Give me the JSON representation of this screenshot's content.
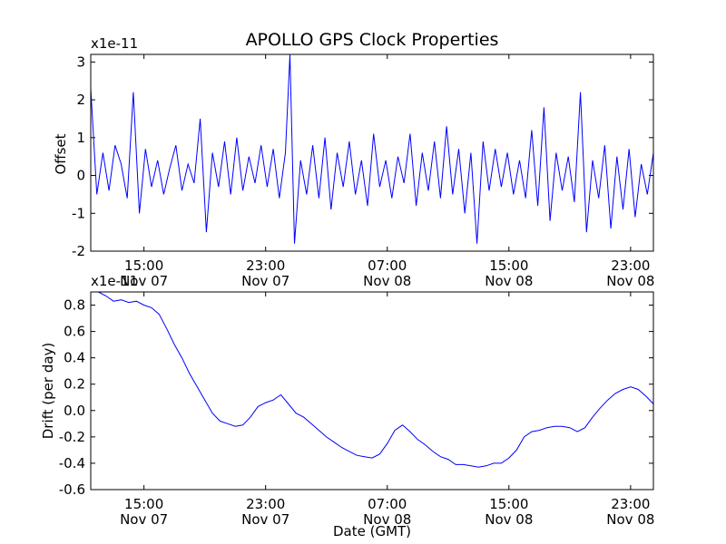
{
  "chart_data": [
    {
      "type": "line",
      "title": "APOLLO GPS Clock Properties",
      "ylabel": "Offset",
      "xlabel": "",
      "scale_label": "x1e-11",
      "ylim": [
        -2,
        3.2
      ],
      "xlim_hours": [
        11.5,
        48.5
      ],
      "yticks": [
        -2,
        -1,
        0,
        1,
        2,
        3
      ],
      "xticks": [
        {
          "hour": 15,
          "time": "15:00",
          "date": "Nov 07"
        },
        {
          "hour": 23,
          "time": "23:00",
          "date": "Nov 07"
        },
        {
          "hour": 31,
          "time": "07:00",
          "date": "Nov 08"
        },
        {
          "hour": 39,
          "time": "15:00",
          "date": "Nov 08"
        },
        {
          "hour": 47,
          "time": "23:00",
          "date": "Nov 08"
        }
      ],
      "series": [
        {
          "color": "#0000ff",
          "x_hours": [
            11.5,
            11.9,
            12.3,
            12.7,
            13.1,
            13.5,
            13.9,
            14.3,
            14.7,
            15.1,
            15.5,
            15.9,
            16.3,
            16.7,
            17.1,
            17.5,
            17.9,
            18.3,
            18.7,
            19.1,
            19.5,
            19.9,
            20.3,
            20.7,
            21.1,
            21.5,
            21.9,
            22.3,
            22.7,
            23.1,
            23.5,
            23.9,
            24.3,
            24.6,
            24.9,
            25.3,
            25.7,
            26.1,
            26.5,
            26.9,
            27.3,
            27.7,
            28.1,
            28.5,
            28.9,
            29.3,
            29.7,
            30.1,
            30.5,
            30.9,
            31.3,
            31.7,
            32.1,
            32.5,
            32.9,
            33.3,
            33.7,
            34.1,
            34.5,
            34.9,
            35.3,
            35.7,
            36.1,
            36.5,
            36.9,
            37.3,
            37.7,
            38.1,
            38.5,
            38.9,
            39.3,
            39.7,
            40.1,
            40.5,
            40.9,
            41.3,
            41.7,
            42.1,
            42.5,
            42.9,
            43.3,
            43.7,
            44.1,
            44.5,
            44.9,
            45.3,
            45.7,
            46.1,
            46.5,
            46.9,
            47.3,
            47.7,
            48.1,
            48.5
          ],
          "values": [
            2.3,
            -0.5,
            0.6,
            -0.4,
            0.8,
            0.3,
            -0.6,
            2.2,
            -1.0,
            0.7,
            -0.3,
            0.4,
            -0.5,
            0.2,
            0.8,
            -0.4,
            0.3,
            -0.2,
            1.5,
            -1.5,
            0.6,
            -0.3,
            0.9,
            -0.5,
            1.0,
            -0.4,
            0.5,
            -0.2,
            0.8,
            -0.3,
            0.7,
            -0.6,
            0.6,
            3.2,
            -1.8,
            0.4,
            -0.5,
            0.8,
            -0.6,
            1.0,
            -0.9,
            0.6,
            -0.3,
            0.9,
            -0.5,
            0.4,
            -0.8,
            1.1,
            -0.3,
            0.4,
            -0.6,
            0.5,
            -0.2,
            1.1,
            -0.8,
            0.6,
            -0.4,
            0.9,
            -0.6,
            1.3,
            -0.5,
            0.7,
            -1.0,
            0.6,
            -1.8,
            0.9,
            -0.4,
            0.7,
            -0.3,
            0.6,
            -0.5,
            0.4,
            -0.6,
            1.2,
            -0.8,
            1.8,
            -1.2,
            0.6,
            -0.4,
            0.5,
            -0.7,
            2.2,
            -1.5,
            0.4,
            -0.6,
            0.8,
            -1.4,
            0.5,
            -0.9,
            0.7,
            -1.1,
            0.3,
            -0.5,
            0.6
          ]
        }
      ]
    },
    {
      "type": "line",
      "title": "",
      "ylabel": "Drift (per day)",
      "xlabel": "Date (GMT)",
      "scale_label": "x1e-11",
      "ylim": [
        -0.6,
        0.9
      ],
      "xlim_hours": [
        11.5,
        48.5
      ],
      "yticks": [
        -0.6,
        -0.4,
        -0.2,
        0.0,
        0.2,
        0.4,
        0.6,
        0.8
      ],
      "ytick_labels": [
        "-0.6",
        "-0.4",
        "-0.2",
        "0.0",
        "0.2",
        "0.4",
        "0.6",
        "0.8"
      ],
      "xticks": [
        {
          "hour": 15,
          "time": "15:00",
          "date": "Nov 07"
        },
        {
          "hour": 23,
          "time": "23:00",
          "date": "Nov 07"
        },
        {
          "hour": 31,
          "time": "07:00",
          "date": "Nov 08"
        },
        {
          "hour": 39,
          "time": "15:00",
          "date": "Nov 08"
        },
        {
          "hour": 47,
          "time": "23:00",
          "date": "Nov 08"
        }
      ],
      "series": [
        {
          "color": "#0000ff",
          "x_hours": [
            11.5,
            12.0,
            12.5,
            13.0,
            13.5,
            14.0,
            14.5,
            15.0,
            15.5,
            16.0,
            16.5,
            17.0,
            17.5,
            18.0,
            18.5,
            19.0,
            19.5,
            20.0,
            20.5,
            21.0,
            21.5,
            22.0,
            22.5,
            23.0,
            23.5,
            24.0,
            24.5,
            25.0,
            25.5,
            26.0,
            26.5,
            27.0,
            27.5,
            28.0,
            28.5,
            29.0,
            29.5,
            30.0,
            30.5,
            31.0,
            31.5,
            32.0,
            32.5,
            33.0,
            33.5,
            34.0,
            34.5,
            35.0,
            35.5,
            36.0,
            36.5,
            37.0,
            37.5,
            38.0,
            38.5,
            39.0,
            39.5,
            40.0,
            40.5,
            41.0,
            41.5,
            42.0,
            42.5,
            43.0,
            43.5,
            44.0,
            44.5,
            45.0,
            45.5,
            46.0,
            46.5,
            47.0,
            47.5,
            48.0,
            48.5
          ],
          "values": [
            0.9,
            0.9,
            0.87,
            0.83,
            0.84,
            0.82,
            0.83,
            0.8,
            0.78,
            0.73,
            0.62,
            0.5,
            0.4,
            0.28,
            0.18,
            0.08,
            -0.02,
            -0.08,
            -0.1,
            -0.12,
            -0.11,
            -0.05,
            0.03,
            0.06,
            0.08,
            0.12,
            0.05,
            -0.02,
            -0.05,
            -0.1,
            -0.15,
            -0.2,
            -0.24,
            -0.28,
            -0.31,
            -0.34,
            -0.35,
            -0.36,
            -0.33,
            -0.25,
            -0.15,
            -0.11,
            -0.16,
            -0.22,
            -0.26,
            -0.31,
            -0.35,
            -0.37,
            -0.41,
            -0.41,
            -0.42,
            -0.43,
            -0.42,
            -0.4,
            -0.4,
            -0.36,
            -0.3,
            -0.2,
            -0.16,
            -0.15,
            -0.13,
            -0.12,
            -0.12,
            -0.13,
            -0.16,
            -0.13,
            -0.05,
            0.02,
            0.08,
            0.13,
            0.16,
            0.18,
            0.16,
            0.11,
            0.05
          ]
        }
      ]
    }
  ]
}
